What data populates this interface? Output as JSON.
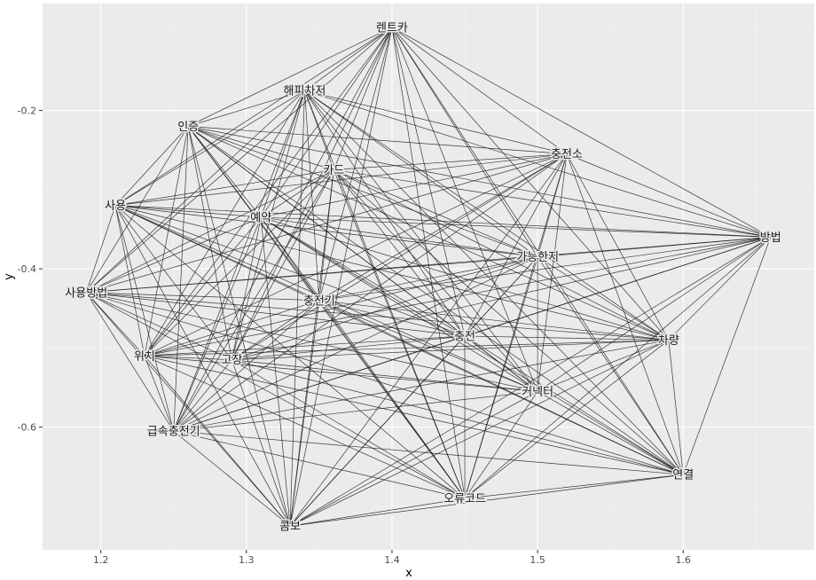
{
  "chart_data": {
    "type": "network",
    "xlabel": "x",
    "ylabel": "y",
    "xlim": [
      1.16,
      1.69
    ],
    "ylim": [
      -0.755,
      -0.065
    ],
    "x_ticks": [
      1.2,
      1.3,
      1.4,
      1.5,
      1.6
    ],
    "x_tick_labels": [
      "1.2",
      "1.3",
      "1.4",
      "1.5",
      "1.6"
    ],
    "y_ticks": [
      -0.2,
      -0.4,
      -0.6
    ],
    "y_tick_labels": [
      "-0.2",
      "-0.4",
      "-0.6"
    ],
    "grid": true,
    "nodes": [
      {
        "label": "렌트카",
        "x": 1.4,
        "y": -0.095
      },
      {
        "label": "해피차저",
        "x": 1.34,
        "y": -0.175
      },
      {
        "label": "인증",
        "x": 1.26,
        "y": -0.22
      },
      {
        "label": "충전소",
        "x": 1.52,
        "y": -0.255
      },
      {
        "label": "카드",
        "x": 1.36,
        "y": -0.275
      },
      {
        "label": "사용",
        "x": 1.21,
        "y": -0.32
      },
      {
        "label": "예약",
        "x": 1.31,
        "y": -0.335
      },
      {
        "label": "방법",
        "x": 1.66,
        "y": -0.36
      },
      {
        "label": "가능한지",
        "x": 1.5,
        "y": -0.385
      },
      {
        "label": "사용방법",
        "x": 1.19,
        "y": -0.43
      },
      {
        "label": "충전기",
        "x": 1.35,
        "y": -0.44
      },
      {
        "label": "충전",
        "x": 1.45,
        "y": -0.485
      },
      {
        "label": "차량",
        "x": 1.59,
        "y": -0.49
      },
      {
        "label": "위치",
        "x": 1.23,
        "y": -0.51
      },
      {
        "label": "고장",
        "x": 1.29,
        "y": -0.515
      },
      {
        "label": "커넥터",
        "x": 1.5,
        "y": -0.555
      },
      {
        "label": "급속충전기",
        "x": 1.25,
        "y": -0.605
      },
      {
        "label": "연결",
        "x": 1.6,
        "y": -0.66
      },
      {
        "label": "오류코드",
        "x": 1.45,
        "y": -0.69
      },
      {
        "label": "콤보",
        "x": 1.33,
        "y": -0.725
      }
    ],
    "edges": "all-pairs"
  }
}
